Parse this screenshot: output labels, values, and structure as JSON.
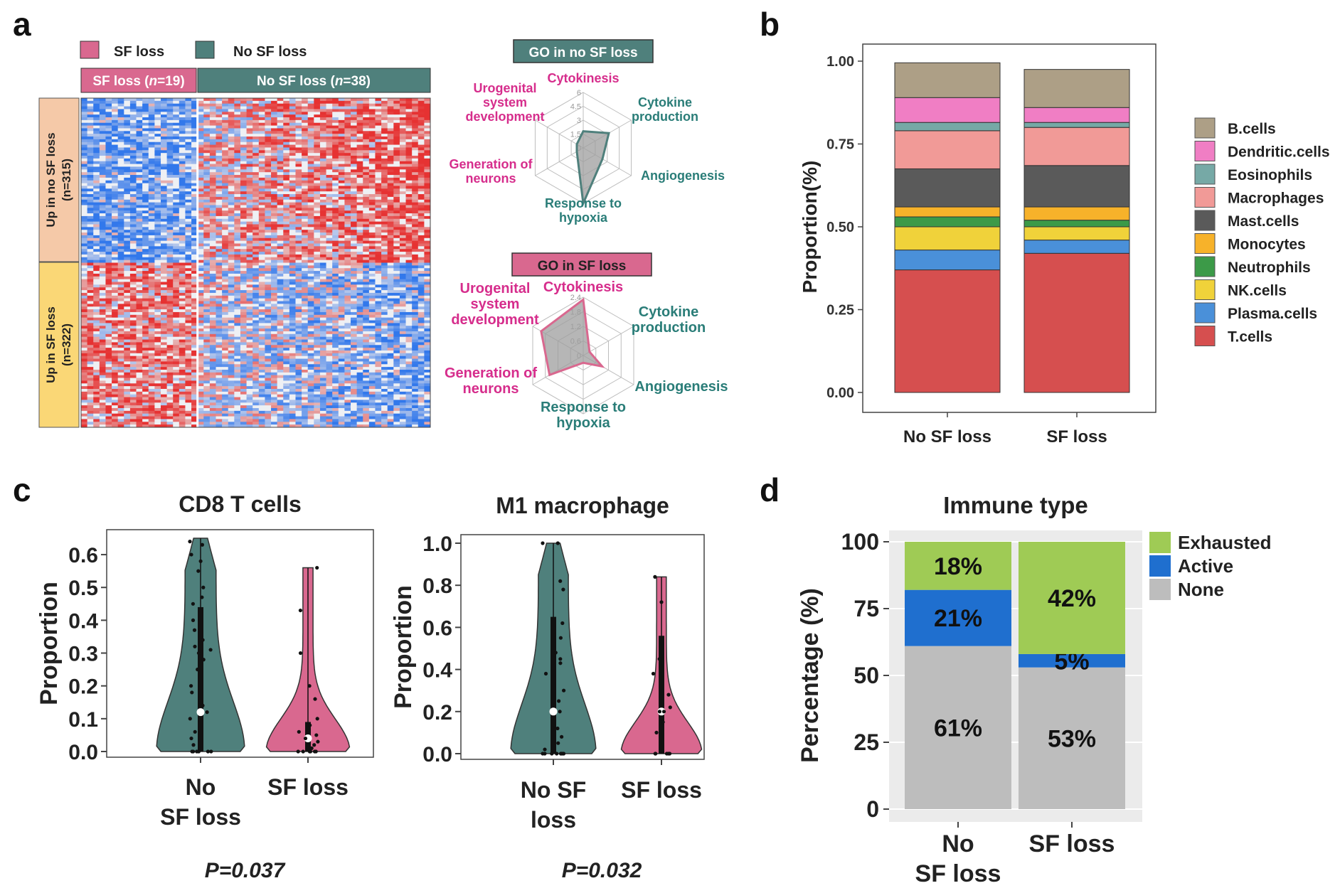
{
  "panels": {
    "a": "a",
    "b": "b",
    "c": "c",
    "d": "d"
  },
  "colors": {
    "sf_loss": "#d9688f",
    "no_sf_loss": "#4f807c",
    "up_no_sf": "#f5c9a8",
    "up_sf": "#fad776",
    "magenta_text": "#d62d8c",
    "teal_text": "#2a7d78"
  },
  "panel_a": {
    "legend": [
      {
        "label": "SF loss",
        "color": "#d9688f"
      },
      {
        "label": "No SF loss",
        "color": "#4f807c"
      }
    ],
    "heatmap": {
      "col_groups": [
        {
          "label": "SF loss (",
          "n": "n",
          "count": "=19)",
          "color": "#d9688f"
        },
        {
          "label": "No SF loss (",
          "n": "n",
          "count": "=38)",
          "color": "#4f807c"
        }
      ],
      "row_groups": [
        {
          "line1": "Up in no SF loss",
          "line2": "(n=315)",
          "color": "#f5c9a8"
        },
        {
          "line1": "Up in SF loss",
          "line2": "(n=322)",
          "color": "#fad776"
        }
      ]
    },
    "radars": [
      {
        "title": "GO in no SF loss",
        "title_bg": "#4f807c",
        "title_color": "#ffffff",
        "stroke": "#4f807c",
        "ticks": [
          "6",
          "4.5",
          "3",
          "1.5",
          "0"
        ],
        "max": 6,
        "axes": [
          {
            "label": [
              "Cytokinesis"
            ],
            "value": 1.8,
            "color": "#d62d8c"
          },
          {
            "label": [
              "Cytokine",
              "production"
            ],
            "value": 3.2,
            "color": "#2a7d78"
          },
          {
            "label": [
              "Angiogenesis"
            ],
            "value": 2.4,
            "color": "#2a7d78"
          },
          {
            "label": [
              "Response to",
              "hypoxia"
            ],
            "value": 6.0,
            "color": "#2a7d78"
          },
          {
            "label": [
              "Generation of",
              "neurons"
            ],
            "value": 0.8,
            "color": "#d62d8c"
          },
          {
            "label": [
              "Urogenital",
              "system",
              "development"
            ],
            "value": 0.8,
            "color": "#d62d8c"
          }
        ]
      },
      {
        "title": "GO in SF loss",
        "title_bg": "#d9688f",
        "title_color": "#222222",
        "stroke": "#d9688f",
        "ticks": [
          "2.4",
          "1.8",
          "1.2",
          "0.6",
          "0"
        ],
        "max": 2.4,
        "axes": [
          {
            "label": [
              "Cytokinesis"
            ],
            "value": 2.3,
            "color": "#d62d8c"
          },
          {
            "label": [
              "Cytokine",
              "production"
            ],
            "value": 0.3,
            "color": "#2a7d78"
          },
          {
            "label": [
              "Angiogenesis"
            ],
            "value": 0.9,
            "color": "#2a7d78"
          },
          {
            "label": [
              "Response to",
              "hypoxia"
            ],
            "value": 0.3,
            "color": "#2a7d78"
          },
          {
            "label": [
              "Generation of",
              "neurons"
            ],
            "value": 1.6,
            "color": "#d62d8c"
          },
          {
            "label": [
              "Urogenital",
              "system",
              "development"
            ],
            "value": 2.0,
            "color": "#d62d8c"
          }
        ]
      }
    ]
  },
  "chart_data": [
    {
      "panel": "b",
      "type": "bar",
      "stacked": true,
      "categories": [
        "No SF loss",
        "SF loss"
      ],
      "ylabel": "Proportion(%)",
      "ylim": [
        0,
        1
      ],
      "yticks": [
        "0.00",
        "0.25",
        "0.50",
        "0.75",
        "1.00"
      ],
      "legend_position": "right",
      "series": [
        {
          "name": "T.cells",
          "color": "#d64f4f",
          "values": [
            0.37,
            0.42
          ]
        },
        {
          "name": "Plasma.cells",
          "color": "#4a90d9",
          "values": [
            0.06,
            0.04
          ]
        },
        {
          "name": "NK.cells",
          "color": "#f0d23a",
          "values": [
            0.07,
            0.04
          ]
        },
        {
          "name": "Neutrophils",
          "color": "#3c9a48",
          "values": [
            0.03,
            0.02
          ]
        },
        {
          "name": "Monocytes",
          "color": "#f7b22a",
          "values": [
            0.03,
            0.04
          ]
        },
        {
          "name": "Mast.cells",
          "color": "#5a5a5a",
          "values": [
            0.115,
            0.125
          ]
        },
        {
          "name": "Macrophages",
          "color": "#f19a97",
          "values": [
            0.115,
            0.115
          ]
        },
        {
          "name": "Eosinophils",
          "color": "#76a9a6",
          "values": [
            0.025,
            0.015
          ]
        },
        {
          "name": "Dendritic.cells",
          "color": "#f07ec4",
          "values": [
            0.075,
            0.045
          ]
        },
        {
          "name": "B.cells",
          "color": "#ad9f86",
          "values": [
            0.105,
            0.115
          ]
        }
      ]
    },
    {
      "panel": "c",
      "type": "violin",
      "title": "CD8 T cells",
      "ylabel": "Proportion",
      "ylim": [
        0,
        0.65
      ],
      "yticks": [
        "0.0",
        "0.1",
        "0.2",
        "0.3",
        "0.4",
        "0.5",
        "0.6"
      ],
      "categories": [
        [
          "No",
          "SF loss"
        ],
        [
          "SF loss"
        ]
      ],
      "pvalue": "P=0.037",
      "groups": [
        {
          "name": "No SF loss",
          "color": "#4f807c",
          "max": 0.65,
          "median": 0.12,
          "q1": 0.0,
          "q3": 0.44,
          "points": [
            0.64,
            0.63,
            0.6,
            0.58,
            0.55,
            0.5,
            0.47,
            0.45,
            0.4,
            0.37,
            0.34,
            0.32,
            0.31,
            0.3,
            0.28,
            0.25,
            0.2,
            0.18,
            0.14,
            0.12,
            0.1,
            0.06,
            0.04,
            0.02,
            0,
            0,
            0,
            0,
            0,
            0
          ]
        },
        {
          "name": "SF loss",
          "color": "#d9688f",
          "max": 0.56,
          "median": 0.04,
          "q1": 0.0,
          "q3": 0.09,
          "points": [
            0.56,
            0.43,
            0.3,
            0.2,
            0.16,
            0.1,
            0.08,
            0.06,
            0.05,
            0.04,
            0.03,
            0.02,
            0.01,
            0,
            0,
            0,
            0,
            0,
            0
          ]
        }
      ]
    },
    {
      "panel": "c",
      "type": "violin",
      "title": "M1 macrophage",
      "ylabel": "Proportion",
      "ylim": [
        0,
        1.0
      ],
      "yticks": [
        "0.0",
        "0.2",
        "0.4",
        "0.6",
        "0.8",
        "1.0"
      ],
      "categories": [
        [
          "No SF",
          "loss"
        ],
        [
          "SF loss"
        ]
      ],
      "pvalue": "P=0.032",
      "groups": [
        {
          "name": "No SF loss",
          "color": "#4f807c",
          "max": 1.0,
          "median": 0.2,
          "q1": 0.0,
          "q3": 0.65,
          "points": [
            1.0,
            1.0,
            0.82,
            0.78,
            0.62,
            0.55,
            0.48,
            0.45,
            0.43,
            0.38,
            0.3,
            0.25,
            0.2,
            0.17,
            0.12,
            0.08,
            0.05,
            0.02,
            0,
            0,
            0,
            0,
            0,
            0,
            0,
            0
          ]
        },
        {
          "name": "SF loss",
          "color": "#d9688f",
          "max": 0.84,
          "median": 0.2,
          "q1": 0.0,
          "q3": 0.56,
          "points": [
            0.84,
            0.72,
            0.45,
            0.38,
            0.28,
            0.22,
            0.2,
            0.2,
            0.15,
            0.1,
            0,
            0,
            0,
            0,
            0
          ]
        }
      ]
    },
    {
      "panel": "d",
      "type": "bar",
      "stacked": true,
      "title": "Immune type",
      "ylabel": "Percentage (%)",
      "ylim": [
        0,
        100
      ],
      "yticks": [
        "0",
        "25",
        "50",
        "75",
        "100"
      ],
      "categories": [
        [
          "No",
          "SF loss"
        ],
        [
          "SF loss"
        ]
      ],
      "legend_position": "right",
      "series": [
        {
          "name": "None",
          "color": "#bdbdbd",
          "values": [
            61,
            53
          ],
          "labels": [
            "61%",
            "53%"
          ]
        },
        {
          "name": "Active",
          "color": "#1f6fcf",
          "values": [
            21,
            5
          ],
          "labels": [
            "21%",
            "5%"
          ]
        },
        {
          "name": "Exhausted",
          "color": "#9fcb55",
          "values": [
            18,
            42
          ],
          "labels": [
            "18%",
            "42%"
          ]
        }
      ]
    }
  ]
}
